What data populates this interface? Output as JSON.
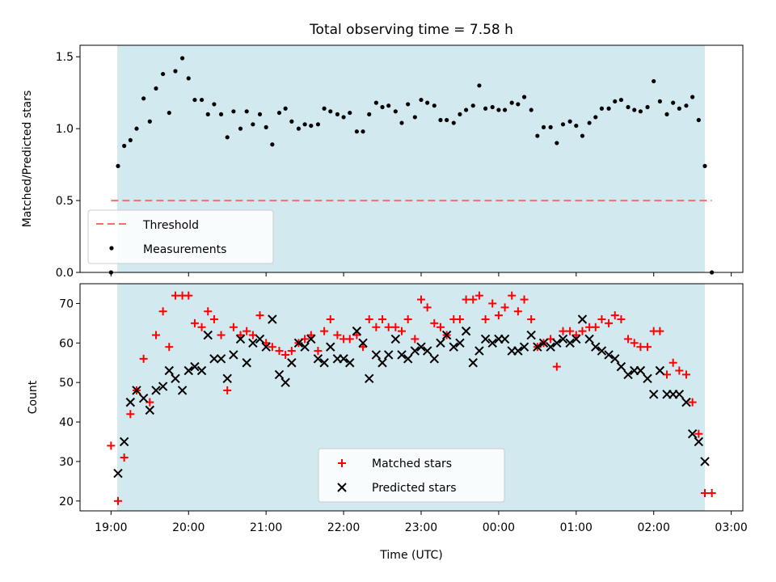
{
  "chart_data": [
    {
      "type": "scatter",
      "title": "Total observing time = 7.58 h",
      "xlabel": "",
      "ylabel": "Matched/Predicted stars",
      "x_units": "hours since 19:00 UTC",
      "xlim": [
        -0.4,
        8.15
      ],
      "ylim": [
        0,
        1.58
      ],
      "yticks": [
        0.0,
        0.5,
        1.0,
        1.5
      ],
      "ytick_labels": [
        "0.0",
        "0.5",
        "1.0",
        "1.5"
      ],
      "grid": false,
      "legend_position": "lower-left",
      "observing_window": [
        0.08,
        7.66
      ],
      "threshold": {
        "name": "Threshold",
        "value": 0.5,
        "x_range": [
          0.0,
          7.75
        ],
        "color": "#f07070"
      },
      "series": [
        {
          "name": "Measurements",
          "color": "#000000",
          "marker": "dot",
          "x": [
            0.0,
            0.09,
            0.17,
            0.25,
            0.33,
            0.42,
            0.5,
            0.58,
            0.67,
            0.75,
            0.83,
            0.92,
            1.0,
            1.08,
            1.17,
            1.25,
            1.33,
            1.42,
            1.5,
            1.58,
            1.67,
            1.75,
            1.83,
            1.92,
            2.0,
            2.08,
            2.17,
            2.25,
            2.33,
            2.42,
            2.5,
            2.58,
            2.67,
            2.75,
            2.83,
            2.92,
            3.0,
            3.08,
            3.17,
            3.25,
            3.33,
            3.42,
            3.5,
            3.58,
            3.67,
            3.75,
            3.83,
            3.92,
            4.0,
            4.08,
            4.17,
            4.25,
            4.33,
            4.42,
            4.5,
            4.58,
            4.67,
            4.75,
            4.83,
            4.92,
            5.0,
            5.08,
            5.17,
            5.25,
            5.33,
            5.42,
            5.5,
            5.58,
            5.67,
            5.75,
            5.83,
            5.92,
            6.0,
            6.08,
            6.17,
            6.25,
            6.33,
            6.42,
            6.5,
            6.58,
            6.67,
            6.75,
            6.83,
            6.92,
            7.0,
            7.08,
            7.17,
            7.25,
            7.33,
            7.42,
            7.5,
            7.58,
            7.66,
            7.75
          ],
          "y": [
            0.0,
            0.74,
            0.88,
            0.92,
            1.0,
            1.21,
            1.05,
            1.28,
            1.38,
            1.11,
            1.4,
            1.49,
            1.35,
            1.2,
            1.2,
            1.1,
            1.17,
            1.1,
            0.94,
            1.12,
            1.0,
            1.12,
            1.03,
            1.1,
            1.01,
            0.89,
            1.11,
            1.14,
            1.05,
            1.0,
            1.03,
            1.02,
            1.03,
            1.14,
            1.12,
            1.1,
            1.08,
            1.11,
            0.98,
            0.98,
            1.1,
            1.18,
            1.15,
            1.16,
            1.12,
            1.04,
            1.17,
            1.08,
            1.2,
            1.18,
            1.16,
            1.06,
            1.06,
            1.04,
            1.1,
            1.13,
            1.16,
            1.3,
            1.14,
            1.15,
            1.13,
            1.13,
            1.18,
            1.17,
            1.22,
            1.13,
            0.95,
            1.01,
            1.01,
            0.9,
            1.03,
            1.05,
            1.02,
            0.95,
            1.04,
            1.08,
            1.14,
            1.14,
            1.19,
            1.2,
            1.15,
            1.13,
            1.12,
            1.15,
            1.33,
            1.19,
            1.1,
            1.18,
            1.14,
            1.16,
            1.22,
            1.06,
            0.74,
            0.0
          ]
        }
      ]
    },
    {
      "type": "scatter",
      "title": "",
      "xlabel": "Time (UTC)",
      "ylabel": "Count",
      "x_units": "hours since 19:00 UTC",
      "xlim": [
        -0.4,
        8.15
      ],
      "ylim": [
        17.5,
        75
      ],
      "yticks": [
        20,
        30,
        40,
        50,
        60,
        70
      ],
      "ytick_labels": [
        "20",
        "30",
        "40",
        "50",
        "60",
        "70"
      ],
      "xticks": [
        0,
        1,
        2,
        3,
        4,
        5,
        6,
        7,
        8
      ],
      "xtick_labels": [
        "19:00",
        "20:00",
        "21:00",
        "22:00",
        "23:00",
        "00:00",
        "01:00",
        "02:00",
        "03:00"
      ],
      "grid": false,
      "legend_position": "lower-center",
      "observing_window": [
        0.08,
        7.66
      ],
      "series": [
        {
          "name": "Matched stars",
          "color": "#ff0000",
          "marker": "plus",
          "x": [
            0.0,
            0.09,
            0.17,
            0.25,
            0.33,
            0.42,
            0.5,
            0.58,
            0.67,
            0.75,
            0.83,
            0.92,
            1.0,
            1.08,
            1.17,
            1.25,
            1.33,
            1.42,
            1.5,
            1.58,
            1.67,
            1.75,
            1.83,
            1.92,
            2.0,
            2.08,
            2.17,
            2.25,
            2.33,
            2.42,
            2.5,
            2.58,
            2.67,
            2.75,
            2.83,
            2.92,
            3.0,
            3.08,
            3.17,
            3.25,
            3.33,
            3.42,
            3.5,
            3.58,
            3.67,
            3.75,
            3.83,
            3.92,
            4.0,
            4.08,
            4.17,
            4.25,
            4.33,
            4.42,
            4.5,
            4.58,
            4.67,
            4.75,
            4.83,
            4.92,
            5.0,
            5.08,
            5.17,
            5.25,
            5.33,
            5.42,
            5.5,
            5.58,
            5.67,
            5.75,
            5.83,
            5.92,
            6.0,
            6.08,
            6.17,
            6.25,
            6.33,
            6.42,
            6.5,
            6.58,
            6.67,
            6.75,
            6.83,
            6.92,
            7.0,
            7.08,
            7.17,
            7.25,
            7.33,
            7.42,
            7.5,
            7.58,
            7.66,
            7.75
          ],
          "y": [
            34,
            20,
            31,
            42,
            48,
            56,
            45,
            62,
            68,
            59,
            72,
            72,
            72,
            65,
            64,
            68,
            66,
            62,
            48,
            64,
            62,
            63,
            62,
            67,
            60,
            59,
            58,
            57,
            58,
            60,
            61,
            62,
            58,
            63,
            66,
            62,
            61,
            61,
            62,
            59,
            66,
            64,
            66,
            64,
            64,
            63,
            66,
            61,
            71,
            69,
            65,
            64,
            62,
            66,
            66,
            71,
            71,
            72,
            66,
            70,
            67,
            69,
            72,
            68,
            71,
            66,
            59,
            60,
            61,
            54,
            63,
            63,
            62,
            63,
            64,
            64,
            66,
            65,
            67,
            66,
            61,
            60,
            59,
            59,
            63,
            63,
            52,
            55,
            53,
            52,
            45,
            37,
            22,
            22
          ]
        },
        {
          "name": "Predicted stars",
          "color": "#000000",
          "marker": "x",
          "x": [
            0.09,
            0.17,
            0.25,
            0.33,
            0.42,
            0.5,
            0.58,
            0.67,
            0.75,
            0.83,
            0.92,
            1.0,
            1.08,
            1.17,
            1.25,
            1.33,
            1.42,
            1.5,
            1.58,
            1.67,
            1.75,
            1.83,
            1.92,
            2.0,
            2.08,
            2.17,
            2.25,
            2.33,
            2.42,
            2.5,
            2.58,
            2.67,
            2.75,
            2.83,
            2.92,
            3.0,
            3.08,
            3.17,
            3.25,
            3.33,
            3.42,
            3.5,
            3.58,
            3.67,
            3.75,
            3.83,
            3.92,
            4.0,
            4.08,
            4.17,
            4.25,
            4.33,
            4.42,
            4.5,
            4.58,
            4.67,
            4.75,
            4.83,
            4.92,
            5.0,
            5.08,
            5.17,
            5.25,
            5.33,
            5.42,
            5.5,
            5.58,
            5.67,
            5.75,
            5.83,
            5.92,
            6.0,
            6.08,
            6.17,
            6.25,
            6.33,
            6.42,
            6.5,
            6.58,
            6.67,
            6.75,
            6.83,
            6.92,
            7.0,
            7.08,
            7.17,
            7.25,
            7.33,
            7.42,
            7.5,
            7.58,
            7.66
          ],
          "y": [
            27,
            35,
            45,
            48,
            46,
            43,
            48,
            49,
            53,
            51,
            48,
            53,
            54,
            53,
            62,
            56,
            56,
            51,
            57,
            61,
            55,
            60,
            61,
            59,
            66,
            52,
            50,
            55,
            60,
            59,
            61,
            56,
            55,
            59,
            56,
            56,
            55,
            63,
            60,
            51,
            57,
            55,
            57,
            61,
            57,
            56,
            58,
            59,
            58,
            56,
            60,
            62,
            59,
            60,
            63,
            55,
            58,
            61,
            60,
            61,
            61,
            58,
            58,
            59,
            62,
            59,
            60,
            59,
            60,
            61,
            60,
            61,
            66,
            61,
            59,
            58,
            57,
            56,
            54,
            52,
            53,
            53,
            51,
            47,
            53,
            47,
            47,
            47,
            45,
            37,
            35,
            30
          ]
        }
      ]
    }
  ]
}
